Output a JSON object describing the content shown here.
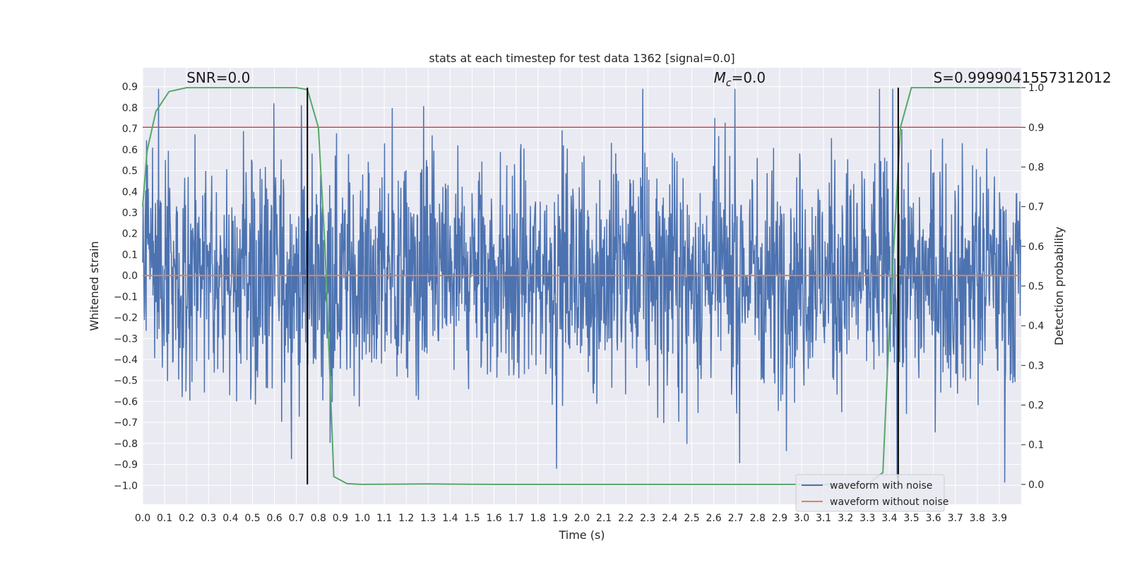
{
  "chart_data": {
    "type": "line",
    "title": "stats at each timestep for test data 1362 [signal=0.0]",
    "xlabel": "Time (s)",
    "ylabel": "Whitened strain",
    "ylabel_right": "Detection probability",
    "xlim": [
      0.0,
      4.0
    ],
    "ylim": [
      -1.09,
      0.99
    ],
    "ylim_right": [
      -0.05,
      1.05
    ],
    "x_ticks": [
      0.0,
      0.1,
      0.2,
      0.3,
      0.4,
      0.5,
      0.6,
      0.7,
      0.8,
      0.9,
      1.0,
      1.1,
      1.2,
      1.3,
      1.4,
      1.5,
      1.6,
      1.7,
      1.8,
      1.9,
      2.0,
      2.1,
      2.2,
      2.3,
      2.4,
      2.5,
      2.6,
      2.7,
      2.8,
      2.9,
      3.0,
      3.1,
      3.2,
      3.3,
      3.4,
      3.5,
      3.6,
      3.7,
      3.8,
      3.9
    ],
    "x_tick_labels": [
      "0.0",
      "0.1",
      "0.2",
      "0.3",
      "0.4",
      "0.5",
      "0.6",
      "0.7",
      "0.8",
      "0.9",
      "1.0",
      "1.1",
      "1.2",
      "1.3",
      "1.4",
      "1.5",
      "1.6",
      "1.7",
      "1.8",
      "1.9",
      "2.0",
      "2.1",
      "2.2",
      "2.3",
      "2.4",
      "2.5",
      "2.6",
      "2.7",
      "2.8",
      "2.9",
      "3.0",
      "3.1",
      "3.2",
      "3.3",
      "3.4",
      "3.5",
      "3.6",
      "3.7",
      "3.8",
      "3.9"
    ],
    "y_ticks": [
      0.9,
      0.8,
      0.7,
      0.6,
      0.5,
      0.4,
      0.3,
      0.2,
      0.1,
      0.0,
      -0.1,
      -0.2,
      -0.3,
      -0.4,
      -0.5,
      -0.6,
      -0.7,
      -0.8,
      -0.9,
      -1.0
    ],
    "y_tick_labels": [
      "0.9",
      "0.8",
      "0.7",
      "0.6",
      "0.5",
      "0.4",
      "0.3",
      "0.2",
      "0.1",
      "0.0",
      "−0.1",
      "−0.2",
      "−0.3",
      "−0.4",
      "−0.5",
      "−0.6",
      "−0.7",
      "−0.8",
      "−0.9",
      "−1.0"
    ],
    "y_ticks_right": [
      1.0,
      0.9,
      0.8,
      0.7,
      0.6,
      0.5,
      0.4,
      0.3,
      0.2,
      0.1,
      0.0
    ],
    "y_tick_labels_right": [
      "1.0",
      "0.9",
      "0.8",
      "0.7",
      "0.6",
      "0.5",
      "0.4",
      "0.3",
      "0.2",
      "0.1",
      "0.0"
    ],
    "series": [
      {
        "name": "waveform with noise",
        "color": "#4c72b0",
        "kind": "noise",
        "x_range": [
          0.0,
          3.997
        ],
        "n_points": 2048,
        "typical_amplitude": 0.28,
        "min": -1.0,
        "max": 0.89
      },
      {
        "name": "waveform without noise",
        "color": "#dd8452",
        "x": [
          0.0,
          3.997
        ],
        "y": [
          0.0,
          0.0
        ]
      },
      {
        "name": "detection probability",
        "color": "#55a868",
        "axis": "right",
        "x": [
          0.0,
          0.02,
          0.06,
          0.12,
          0.2,
          0.3,
          0.5,
          0.7,
          0.75,
          0.8,
          0.83,
          0.87,
          0.93,
          1.0,
          1.3,
          1.6,
          2.0,
          2.5,
          3.0,
          3.3,
          3.37,
          3.4,
          3.45,
          3.5,
          3.6,
          3.8,
          3.997
        ],
        "y": [
          0.7,
          0.84,
          0.94,
          0.99,
          1.0,
          1.0,
          1.0,
          1.0,
          0.995,
          0.9,
          0.6,
          0.02,
          0.002,
          0.0,
          0.001,
          0.0,
          0.0,
          0.0,
          0.0,
          0.0,
          0.03,
          0.4,
          0.9,
          1.0,
          1.0,
          1.0,
          1.0
        ]
      }
    ],
    "threshold": {
      "y_right": 0.9,
      "color": "#c44e52"
    },
    "vlines": {
      "x": [
        0.75,
        3.44
      ],
      "color": "#000000",
      "y_range_right": [
        0.0,
        1.0
      ]
    },
    "annotations": [
      {
        "text": "SNR=0.0",
        "x": 0.2,
        "y": 0.92
      },
      {
        "text": "Mc",
        "x": 2.6,
        "y": 0.92,
        "subscript_base": "M",
        "subscript": "c",
        "suffix": "=0.0"
      },
      {
        "text": "S=0.9999041557312012",
        "x": 3.6,
        "y": 0.92
      }
    ],
    "legend": {
      "location": "lower-right",
      "entries": [
        {
          "label": "waveform with noise",
          "color": "#4c72b0"
        },
        {
          "label": "waveform without noise",
          "color": "#dd8452"
        }
      ]
    },
    "grid": true
  }
}
